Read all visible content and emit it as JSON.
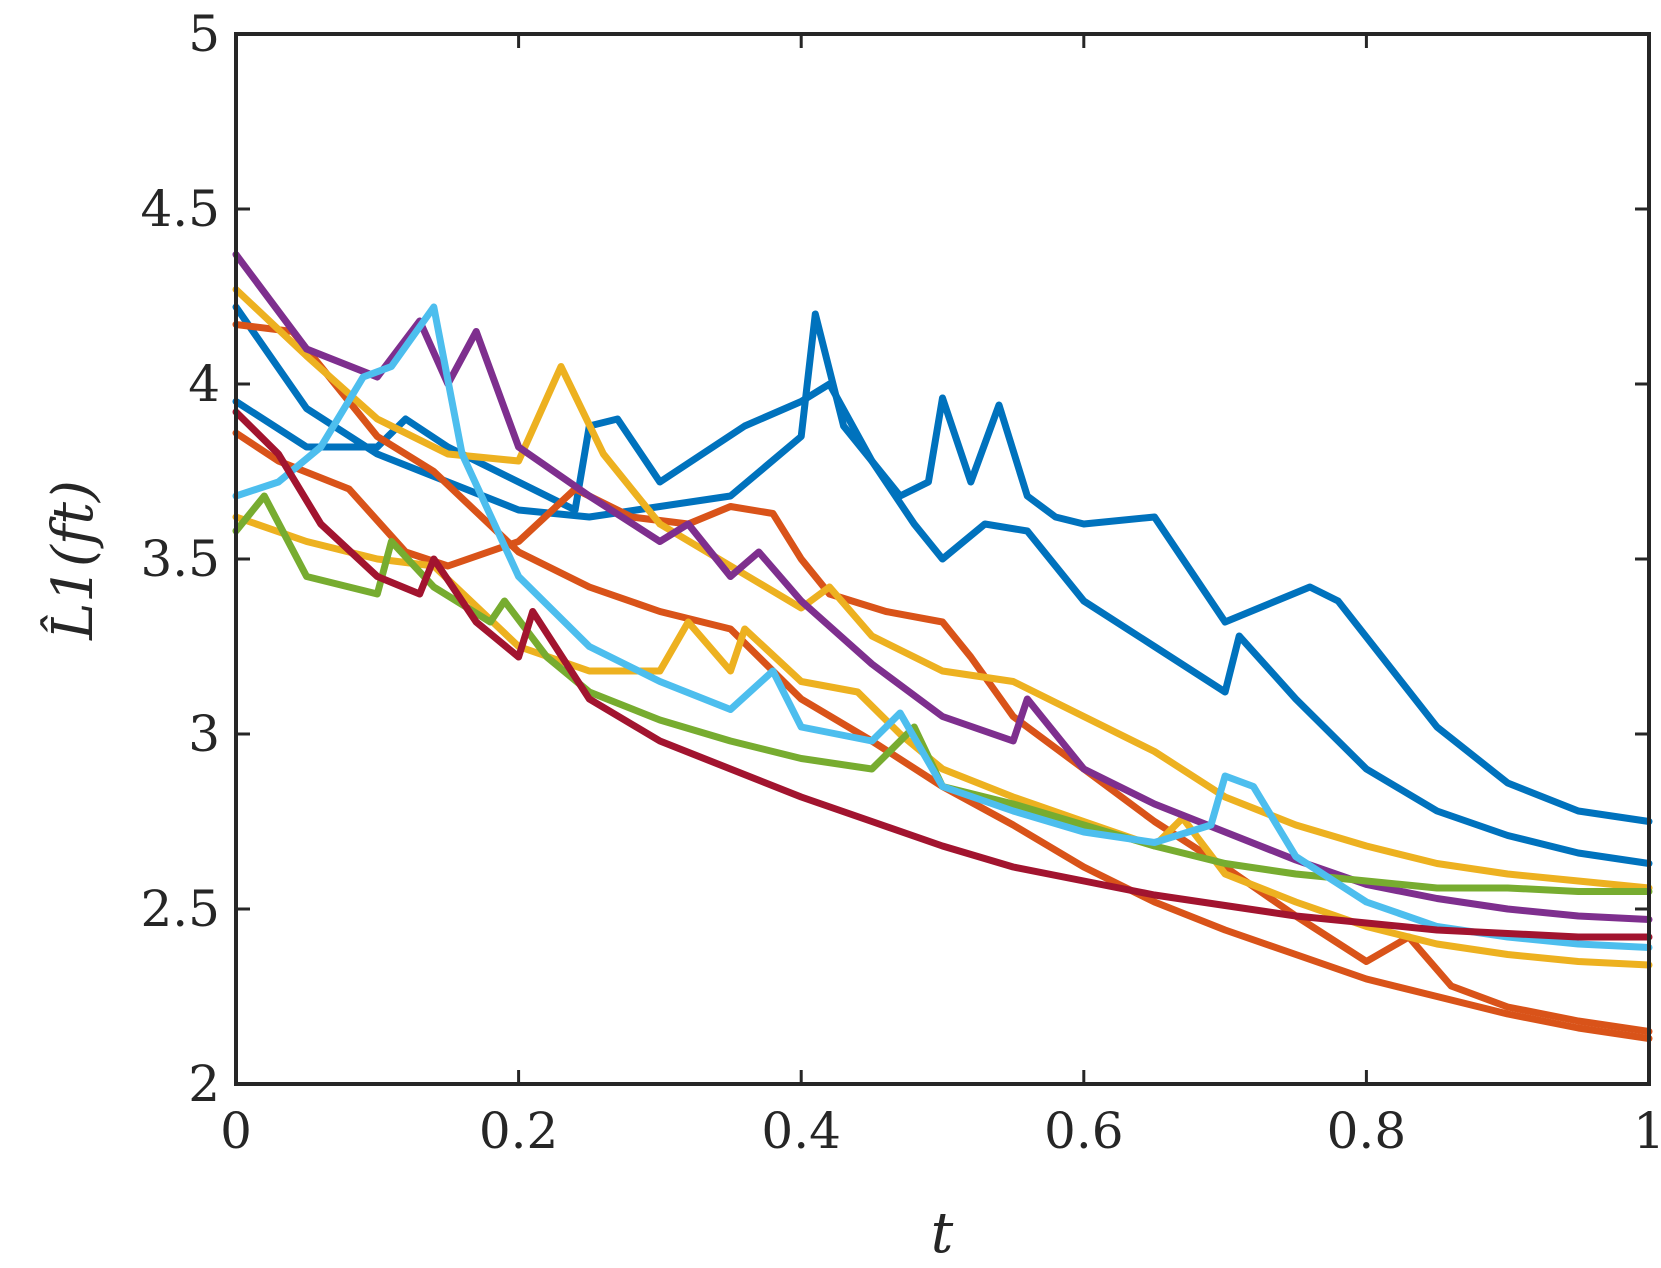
{
  "chart_data": {
    "type": "line",
    "xlabel": "t",
    "ylabel": "L̂1(ft)",
    "xlim": [
      0,
      1
    ],
    "ylim": [
      2,
      5
    ],
    "xticks": [
      "0",
      "0.2",
      "0.4",
      "0.6",
      "0.8",
      "1"
    ],
    "yticks": [
      "2",
      "2.5",
      "3",
      "3.5",
      "4",
      "4.5",
      "5"
    ],
    "grid": false,
    "legend": "none",
    "series": [
      {
        "color": "#0072BD",
        "points": [
          [
            0,
            4.22
          ],
          [
            0.05,
            3.93
          ],
          [
            0.1,
            3.8
          ],
          [
            0.15,
            3.72
          ],
          [
            0.2,
            3.64
          ],
          [
            0.25,
            3.62
          ],
          [
            0.3,
            3.65
          ],
          [
            0.35,
            3.68
          ],
          [
            0.4,
            3.85
          ],
          [
            0.41,
            4.2
          ],
          [
            0.43,
            3.88
          ],
          [
            0.47,
            3.68
          ],
          [
            0.49,
            3.72
          ],
          [
            0.5,
            3.96
          ],
          [
            0.52,
            3.72
          ],
          [
            0.54,
            3.94
          ],
          [
            0.56,
            3.68
          ],
          [
            0.58,
            3.62
          ],
          [
            0.6,
            3.6
          ],
          [
            0.65,
            3.62
          ],
          [
            0.7,
            3.32
          ],
          [
            0.76,
            3.42
          ],
          [
            0.78,
            3.38
          ],
          [
            0.85,
            3.02
          ],
          [
            0.9,
            2.86
          ],
          [
            0.95,
            2.78
          ],
          [
            1.0,
            2.75
          ]
        ]
      },
      {
        "color": "#0072BD",
        "points": [
          [
            0,
            3.95
          ],
          [
            0.05,
            3.82
          ],
          [
            0.1,
            3.82
          ],
          [
            0.12,
            3.9
          ],
          [
            0.15,
            3.82
          ],
          [
            0.2,
            3.72
          ],
          [
            0.24,
            3.64
          ],
          [
            0.25,
            3.88
          ],
          [
            0.27,
            3.9
          ],
          [
            0.3,
            3.72
          ],
          [
            0.36,
            3.88
          ],
          [
            0.4,
            3.95
          ],
          [
            0.42,
            4.0
          ],
          [
            0.45,
            3.78
          ],
          [
            0.48,
            3.6
          ],
          [
            0.5,
            3.5
          ],
          [
            0.53,
            3.6
          ],
          [
            0.56,
            3.58
          ],
          [
            0.6,
            3.38
          ],
          [
            0.65,
            3.25
          ],
          [
            0.7,
            3.12
          ],
          [
            0.71,
            3.28
          ],
          [
            0.75,
            3.1
          ],
          [
            0.8,
            2.9
          ],
          [
            0.85,
            2.78
          ],
          [
            0.9,
            2.71
          ],
          [
            0.95,
            2.66
          ],
          [
            1.0,
            2.63
          ]
        ]
      },
      {
        "color": "#D95319",
        "points": [
          [
            0,
            3.86
          ],
          [
            0.03,
            3.78
          ],
          [
            0.08,
            3.7
          ],
          [
            0.12,
            3.52
          ],
          [
            0.15,
            3.48
          ],
          [
            0.2,
            3.55
          ],
          [
            0.24,
            3.7
          ],
          [
            0.28,
            3.62
          ],
          [
            0.32,
            3.6
          ],
          [
            0.35,
            3.65
          ],
          [
            0.38,
            3.63
          ],
          [
            0.4,
            3.5
          ],
          [
            0.42,
            3.4
          ],
          [
            0.46,
            3.35
          ],
          [
            0.5,
            3.32
          ],
          [
            0.52,
            3.22
          ],
          [
            0.55,
            3.05
          ],
          [
            0.6,
            2.9
          ],
          [
            0.65,
            2.75
          ],
          [
            0.7,
            2.62
          ],
          [
            0.75,
            2.48
          ],
          [
            0.8,
            2.35
          ],
          [
            0.83,
            2.42
          ],
          [
            0.86,
            2.28
          ],
          [
            0.9,
            2.22
          ],
          [
            0.95,
            2.18
          ],
          [
            1.0,
            2.15
          ]
        ]
      },
      {
        "color": "#D95319",
        "points": [
          [
            0,
            4.17
          ],
          [
            0.04,
            4.15
          ],
          [
            0.06,
            4.05
          ],
          [
            0.1,
            3.85
          ],
          [
            0.14,
            3.75
          ],
          [
            0.2,
            3.52
          ],
          [
            0.25,
            3.42
          ],
          [
            0.3,
            3.35
          ],
          [
            0.35,
            3.3
          ],
          [
            0.4,
            3.1
          ],
          [
            0.45,
            2.98
          ],
          [
            0.5,
            2.85
          ],
          [
            0.55,
            2.74
          ],
          [
            0.6,
            2.62
          ],
          [
            0.65,
            2.52
          ],
          [
            0.7,
            2.44
          ],
          [
            0.75,
            2.37
          ],
          [
            0.8,
            2.3
          ],
          [
            0.85,
            2.25
          ],
          [
            0.9,
            2.2
          ],
          [
            0.95,
            2.16
          ],
          [
            1.0,
            2.13
          ]
        ]
      },
      {
        "color": "#EDB120",
        "points": [
          [
            0,
            4.27
          ],
          [
            0.05,
            4.08
          ],
          [
            0.1,
            3.9
          ],
          [
            0.15,
            3.8
          ],
          [
            0.2,
            3.78
          ],
          [
            0.23,
            4.05
          ],
          [
            0.26,
            3.8
          ],
          [
            0.3,
            3.6
          ],
          [
            0.35,
            3.48
          ],
          [
            0.4,
            3.36
          ],
          [
            0.42,
            3.42
          ],
          [
            0.45,
            3.28
          ],
          [
            0.5,
            3.18
          ],
          [
            0.55,
            3.15
          ],
          [
            0.6,
            3.05
          ],
          [
            0.65,
            2.95
          ],
          [
            0.7,
            2.82
          ],
          [
            0.75,
            2.74
          ],
          [
            0.8,
            2.68
          ],
          [
            0.85,
            2.63
          ],
          [
            0.9,
            2.6
          ],
          [
            0.95,
            2.58
          ],
          [
            1.0,
            2.56
          ]
        ]
      },
      {
        "color": "#EDB120",
        "points": [
          [
            0,
            3.62
          ],
          [
            0.05,
            3.55
          ],
          [
            0.1,
            3.5
          ],
          [
            0.14,
            3.48
          ],
          [
            0.2,
            3.25
          ],
          [
            0.25,
            3.18
          ],
          [
            0.3,
            3.18
          ],
          [
            0.32,
            3.32
          ],
          [
            0.35,
            3.18
          ],
          [
            0.36,
            3.3
          ],
          [
            0.4,
            3.15
          ],
          [
            0.44,
            3.12
          ],
          [
            0.47,
            3.0
          ],
          [
            0.5,
            2.9
          ],
          [
            0.55,
            2.82
          ],
          [
            0.6,
            2.75
          ],
          [
            0.65,
            2.68
          ],
          [
            0.67,
            2.76
          ],
          [
            0.7,
            2.6
          ],
          [
            0.75,
            2.52
          ],
          [
            0.8,
            2.45
          ],
          [
            0.85,
            2.4
          ],
          [
            0.9,
            2.37
          ],
          [
            0.95,
            2.35
          ],
          [
            1.0,
            2.34
          ]
        ]
      },
      {
        "color": "#7E2F8E",
        "points": [
          [
            0,
            4.37
          ],
          [
            0.05,
            4.1
          ],
          [
            0.1,
            4.02
          ],
          [
            0.13,
            4.18
          ],
          [
            0.15,
            4.0
          ],
          [
            0.17,
            4.15
          ],
          [
            0.2,
            3.82
          ],
          [
            0.25,
            3.68
          ],
          [
            0.3,
            3.55
          ],
          [
            0.32,
            3.6
          ],
          [
            0.35,
            3.45
          ],
          [
            0.37,
            3.52
          ],
          [
            0.4,
            3.38
          ],
          [
            0.45,
            3.2
          ],
          [
            0.5,
            3.05
          ],
          [
            0.55,
            2.98
          ],
          [
            0.56,
            3.1
          ],
          [
            0.6,
            2.9
          ],
          [
            0.65,
            2.8
          ],
          [
            0.7,
            2.72
          ],
          [
            0.75,
            2.64
          ],
          [
            0.8,
            2.57
          ],
          [
            0.85,
            2.53
          ],
          [
            0.9,
            2.5
          ],
          [
            0.95,
            2.48
          ],
          [
            1.0,
            2.47
          ]
        ]
      },
      {
        "color": "#77AC30",
        "points": [
          [
            0,
            3.58
          ],
          [
            0.02,
            3.68
          ],
          [
            0.05,
            3.45
          ],
          [
            0.1,
            3.4
          ],
          [
            0.11,
            3.55
          ],
          [
            0.14,
            3.42
          ],
          [
            0.18,
            3.32
          ],
          [
            0.19,
            3.38
          ],
          [
            0.22,
            3.22
          ],
          [
            0.25,
            3.12
          ],
          [
            0.3,
            3.04
          ],
          [
            0.35,
            2.98
          ],
          [
            0.4,
            2.93
          ],
          [
            0.45,
            2.9
          ],
          [
            0.48,
            3.02
          ],
          [
            0.5,
            2.85
          ],
          [
            0.55,
            2.8
          ],
          [
            0.6,
            2.74
          ],
          [
            0.65,
            2.68
          ],
          [
            0.7,
            2.63
          ],
          [
            0.75,
            2.6
          ],
          [
            0.8,
            2.58
          ],
          [
            0.85,
            2.56
          ],
          [
            0.9,
            2.56
          ],
          [
            0.95,
            2.55
          ],
          [
            1.0,
            2.55
          ]
        ]
      },
      {
        "color": "#4DBEEE",
        "points": [
          [
            0,
            3.68
          ],
          [
            0.03,
            3.72
          ],
          [
            0.06,
            3.82
          ],
          [
            0.09,
            4.02
          ],
          [
            0.11,
            4.05
          ],
          [
            0.14,
            4.22
          ],
          [
            0.16,
            3.8
          ],
          [
            0.2,
            3.45
          ],
          [
            0.25,
            3.25
          ],
          [
            0.3,
            3.15
          ],
          [
            0.35,
            3.07
          ],
          [
            0.38,
            3.18
          ],
          [
            0.4,
            3.02
          ],
          [
            0.45,
            2.98
          ],
          [
            0.47,
            3.06
          ],
          [
            0.5,
            2.85
          ],
          [
            0.55,
            2.78
          ],
          [
            0.6,
            2.72
          ],
          [
            0.65,
            2.69
          ],
          [
            0.69,
            2.74
          ],
          [
            0.7,
            2.88
          ],
          [
            0.72,
            2.85
          ],
          [
            0.75,
            2.65
          ],
          [
            0.8,
            2.52
          ],
          [
            0.85,
            2.45
          ],
          [
            0.9,
            2.42
          ],
          [
            0.95,
            2.4
          ],
          [
            1.0,
            2.39
          ]
        ]
      },
      {
        "color": "#A2142F",
        "points": [
          [
            0,
            3.92
          ],
          [
            0.03,
            3.8
          ],
          [
            0.06,
            3.6
          ],
          [
            0.1,
            3.45
          ],
          [
            0.13,
            3.4
          ],
          [
            0.14,
            3.5
          ],
          [
            0.17,
            3.32
          ],
          [
            0.2,
            3.22
          ],
          [
            0.21,
            3.35
          ],
          [
            0.25,
            3.1
          ],
          [
            0.3,
            2.98
          ],
          [
            0.35,
            2.9
          ],
          [
            0.4,
            2.82
          ],
          [
            0.45,
            2.75
          ],
          [
            0.5,
            2.68
          ],
          [
            0.55,
            2.62
          ],
          [
            0.6,
            2.58
          ],
          [
            0.65,
            2.54
          ],
          [
            0.7,
            2.51
          ],
          [
            0.75,
            2.48
          ],
          [
            0.8,
            2.46
          ],
          [
            0.85,
            2.44
          ],
          [
            0.9,
            2.43
          ],
          [
            0.95,
            2.42
          ],
          [
            1.0,
            2.42
          ]
        ]
      }
    ]
  }
}
